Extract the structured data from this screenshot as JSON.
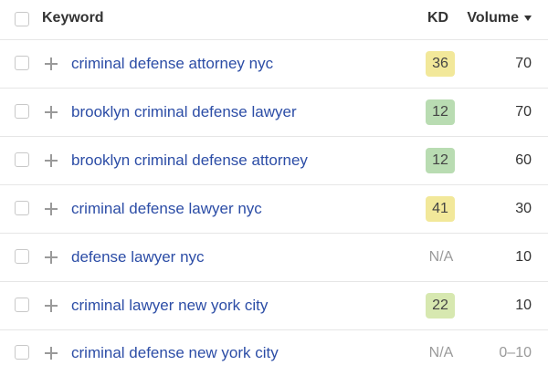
{
  "header": {
    "keyword_label": "Keyword",
    "kd_label": "KD",
    "volume_label": "Volume"
  },
  "colors": {
    "kd_yellow": "#f2e89a",
    "kd_green_light": "#d7e8b0",
    "kd_green": "#b9dcb2",
    "link_blue": "#2c4da6"
  },
  "rows": [
    {
      "keyword": "criminal defense attorney nyc",
      "kd": "36",
      "kd_color": "#f2e89a",
      "volume": "70"
    },
    {
      "keyword": "brooklyn criminal defense lawyer",
      "kd": "12",
      "kd_color": "#b9dcb2",
      "volume": "70"
    },
    {
      "keyword": "brooklyn criminal defense attorney",
      "kd": "12",
      "kd_color": "#b9dcb2",
      "volume": "60"
    },
    {
      "keyword": "criminal defense lawyer nyc",
      "kd": "41",
      "kd_color": "#f2e89a",
      "volume": "30"
    },
    {
      "keyword": "defense lawyer nyc",
      "kd": "N/A",
      "kd_color": "",
      "volume": "10"
    },
    {
      "keyword": "criminal lawyer new york city",
      "kd": "22",
      "kd_color": "#d7e8b0",
      "volume": "10"
    },
    {
      "keyword": "criminal defense new york city",
      "kd": "N/A",
      "kd_color": "",
      "volume": "0–10"
    }
  ]
}
